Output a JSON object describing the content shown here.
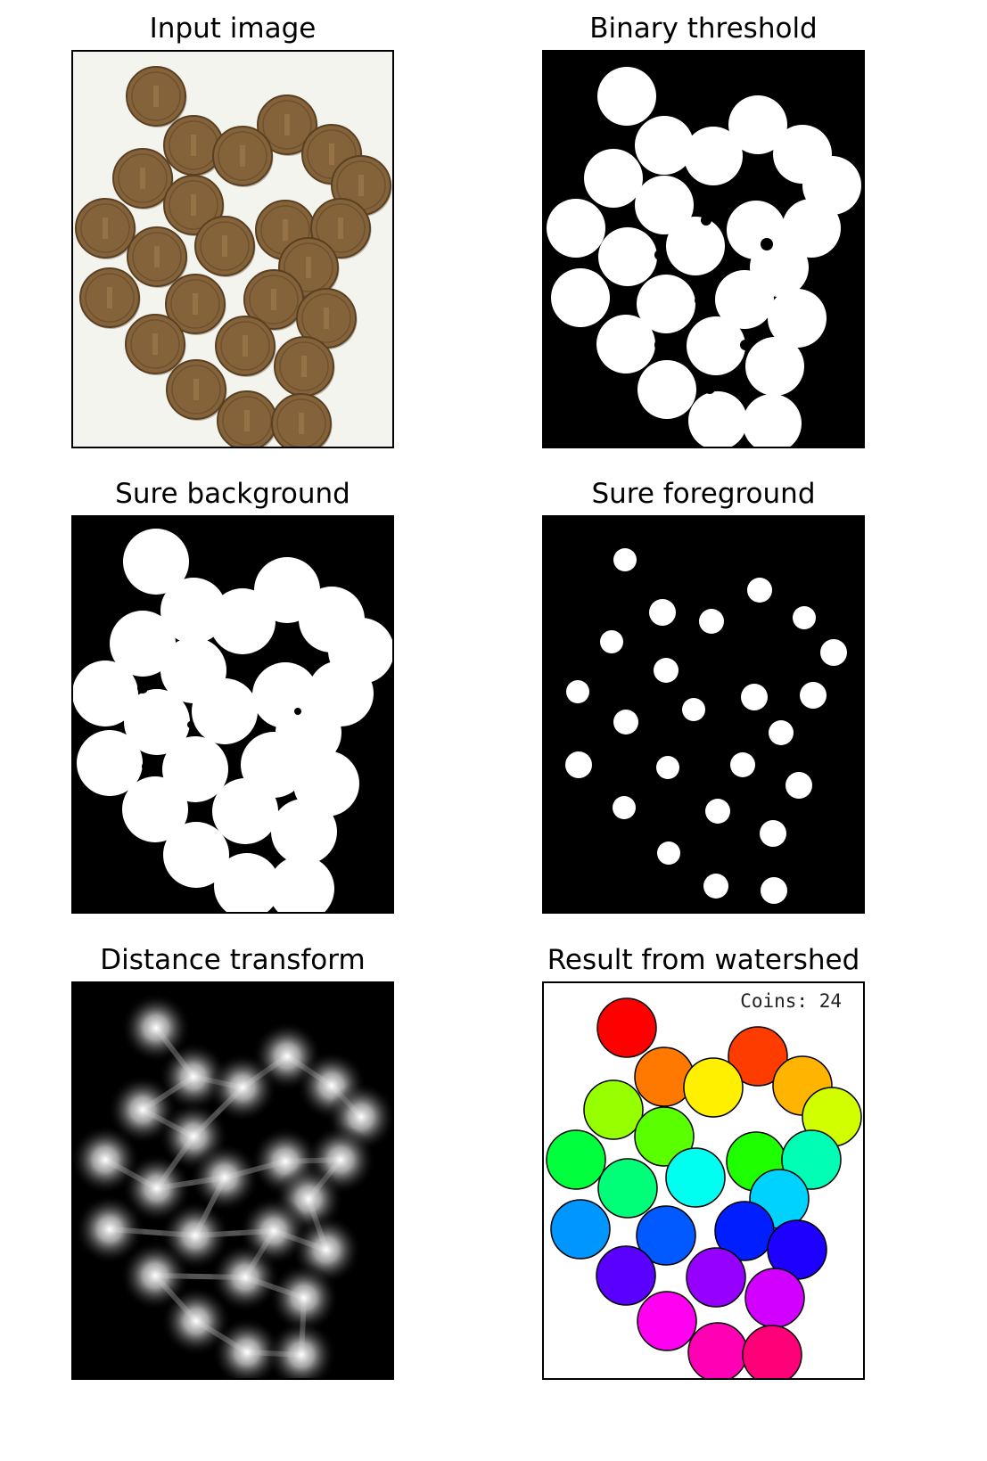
{
  "figure": {
    "panels": [
      {
        "id": "input",
        "title": "Input image"
      },
      {
        "id": "threshold",
        "title": "Binary threshold"
      },
      {
        "id": "background",
        "title": "Sure background"
      },
      {
        "id": "foreground",
        "title": "Sure foreground"
      },
      {
        "id": "distance",
        "title": "Distance transform"
      },
      {
        "id": "watershed",
        "title": "Result from watershed",
        "overlay_text": "Coins: 24"
      }
    ]
  },
  "colors": {
    "coin_fill": "#85633a",
    "coin_edge": "#5a4023",
    "paper": "#f4f4ef",
    "mask_white": "#ffffff",
    "mask_black": "#000000"
  },
  "segment_colors": [
    "#ff0000",
    "#ff3c00",
    "#ff7800",
    "#ffb400",
    "#fff000",
    "#d2ff00",
    "#96ff00",
    "#5aff00",
    "#1eff00",
    "#00ff3c",
    "#00ff78",
    "#00ffb4",
    "#00fff0",
    "#00d2ff",
    "#0096ff",
    "#005aff",
    "#001eff",
    "#1e00ff",
    "#5a00ff",
    "#9600ff",
    "#d200ff",
    "#ff00f0",
    "#ff00b4",
    "#ff0078"
  ]
}
